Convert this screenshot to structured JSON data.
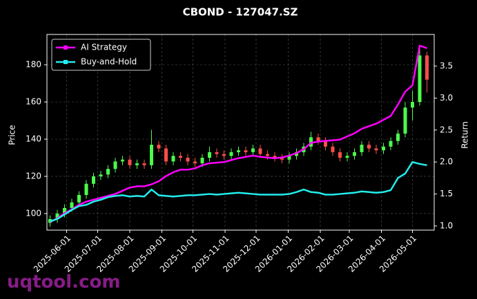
{
  "chart_data": {
    "type": "candlestick",
    "title": "CBOND - 127047.SZ",
    "ylabel": "Price",
    "y2label": "Return",
    "watermark": "uqtool.com",
    "x": [
      "2025-05-16",
      "2025-05-23",
      "2025-05-30",
      "2025-06-06",
      "2025-06-13",
      "2025-06-20",
      "2025-06-27",
      "2025-07-04",
      "2025-07-11",
      "2025-07-18",
      "2025-07-25",
      "2025-08-01",
      "2025-08-08",
      "2025-08-15",
      "2025-08-22",
      "2025-08-29",
      "2025-09-05",
      "2025-09-12",
      "2025-09-19",
      "2025-09-26",
      "2025-10-03",
      "2025-10-10",
      "2025-10-17",
      "2025-10-24",
      "2025-10-31",
      "2025-11-07",
      "2025-11-14",
      "2025-11-21",
      "2025-11-28",
      "2025-12-05",
      "2025-12-12",
      "2025-12-19",
      "2025-12-26",
      "2026-01-02",
      "2026-01-09",
      "2026-01-16",
      "2026-01-23",
      "2026-01-30",
      "2026-02-06",
      "2026-02-13",
      "2026-02-20",
      "2026-02-27",
      "2026-03-06",
      "2026-03-13",
      "2026-03-20",
      "2026-03-27",
      "2026-04-03",
      "2026-04-10",
      "2026-04-17",
      "2026-04-24",
      "2026-05-01",
      "2026-05-08",
      "2026-05-15"
    ],
    "open": [
      95,
      97,
      100,
      103,
      106,
      110,
      116,
      120,
      121,
      124,
      128,
      129,
      126,
      127,
      126,
      137,
      135,
      128,
      131,
      130,
      128,
      127,
      130,
      133,
      132,
      131,
      133,
      134,
      133,
      135,
      132,
      131,
      130,
      129,
      131,
      133,
      136,
      141,
      139,
      136,
      133,
      130,
      131,
      133,
      137,
      135,
      134,
      136,
      139,
      143,
      157,
      160,
      185
    ],
    "high": [
      99,
      102,
      105,
      108,
      112,
      118,
      122,
      123,
      126,
      130,
      131,
      131,
      129,
      129,
      145,
      139,
      137,
      133,
      133,
      132,
      130,
      132,
      136,
      135,
      134,
      135,
      136,
      136,
      137,
      137,
      134,
      133,
      132,
      133,
      135,
      138,
      144,
      143,
      141,
      138,
      135,
      133,
      135,
      139,
      139,
      137,
      138,
      141,
      145,
      160,
      166,
      190,
      187
    ],
    "low": [
      93,
      95,
      98,
      101,
      104,
      108,
      114,
      118,
      119,
      122,
      126,
      124,
      124,
      124,
      124,
      133,
      126,
      126,
      128,
      126,
      125,
      125,
      128,
      130,
      129,
      129,
      131,
      131,
      131,
      130,
      129,
      128,
      127,
      127,
      129,
      131,
      134,
      137,
      134,
      131,
      128,
      128,
      129,
      131,
      133,
      132,
      132,
      134,
      137,
      141,
      150,
      158,
      165
    ],
    "close": [
      97,
      100,
      103,
      106,
      110,
      116,
      120,
      121,
      124,
      128,
      129,
      126,
      127,
      126,
      137,
      135,
      128,
      131,
      130,
      128,
      127,
      130,
      133,
      132,
      131,
      133,
      134,
      133,
      135,
      132,
      131,
      130,
      129,
      131,
      133,
      136,
      141,
      139,
      136,
      133,
      130,
      131,
      133,
      137,
      135,
      134,
      136,
      139,
      143,
      157,
      160,
      185,
      172
    ],
    "up_color": "#4cff4c",
    "down_color": "#ff4c4c",
    "series": [
      {
        "name": "AI Strategy",
        "color": "#ff00ff",
        "axis": "y2",
        "values": [
          1.06,
          1.12,
          1.2,
          1.26,
          1.33,
          1.38,
          1.41,
          1.44,
          1.47,
          1.5,
          1.55,
          1.6,
          1.62,
          1.62,
          1.65,
          1.7,
          1.78,
          1.84,
          1.88,
          1.88,
          1.9,
          1.95,
          1.98,
          1.99,
          2.0,
          2.03,
          2.06,
          2.08,
          2.1,
          2.08,
          2.07,
          2.06,
          2.07,
          2.1,
          2.14,
          2.2,
          2.3,
          2.32,
          2.33,
          2.34,
          2.35,
          2.4,
          2.45,
          2.52,
          2.56,
          2.6,
          2.66,
          2.72,
          2.9,
          3.1,
          3.2,
          3.82,
          3.78
        ]
      },
      {
        "name": "Buy-and-Hold",
        "color": "#22eeee",
        "axis": "y2",
        "values": [
          1.07,
          1.11,
          1.18,
          1.25,
          1.31,
          1.33,
          1.38,
          1.41,
          1.45,
          1.47,
          1.48,
          1.46,
          1.47,
          1.46,
          1.57,
          1.48,
          1.47,
          1.46,
          1.47,
          1.48,
          1.48,
          1.49,
          1.5,
          1.49,
          1.5,
          1.51,
          1.52,
          1.51,
          1.5,
          1.49,
          1.49,
          1.49,
          1.49,
          1.5,
          1.53,
          1.57,
          1.53,
          1.52,
          1.49,
          1.49,
          1.5,
          1.51,
          1.52,
          1.54,
          1.53,
          1.52,
          1.53,
          1.56,
          1.75,
          1.82,
          2.0,
          1.97,
          1.95
        ]
      }
    ],
    "xlim": [
      "2025-05-13",
      "2026-05-22"
    ],
    "xticks": [
      "2025-06-01",
      "2025-07-01",
      "2025-08-01",
      "2025-09-01",
      "2025-10-01",
      "2025-11-01",
      "2025-12-01",
      "2026-01-01",
      "2026-02-01",
      "2026-03-01",
      "2026-04-01",
      "2026-05-01"
    ],
    "ylim": [
      91.1,
      196.3
    ],
    "yticks": [
      100,
      120,
      140,
      160,
      180
    ],
    "y2lim": [
      0.935,
      3.995
    ],
    "y2ticks": [
      {
        "value": 1,
        "label": "1.0"
      },
      1.5,
      {
        "value": 2,
        "label": "2.0"
      },
      2.5,
      {
        "value": 3,
        "label": "3.0"
      },
      3.5
    ],
    "grid": true,
    "legend": "upper left"
  }
}
